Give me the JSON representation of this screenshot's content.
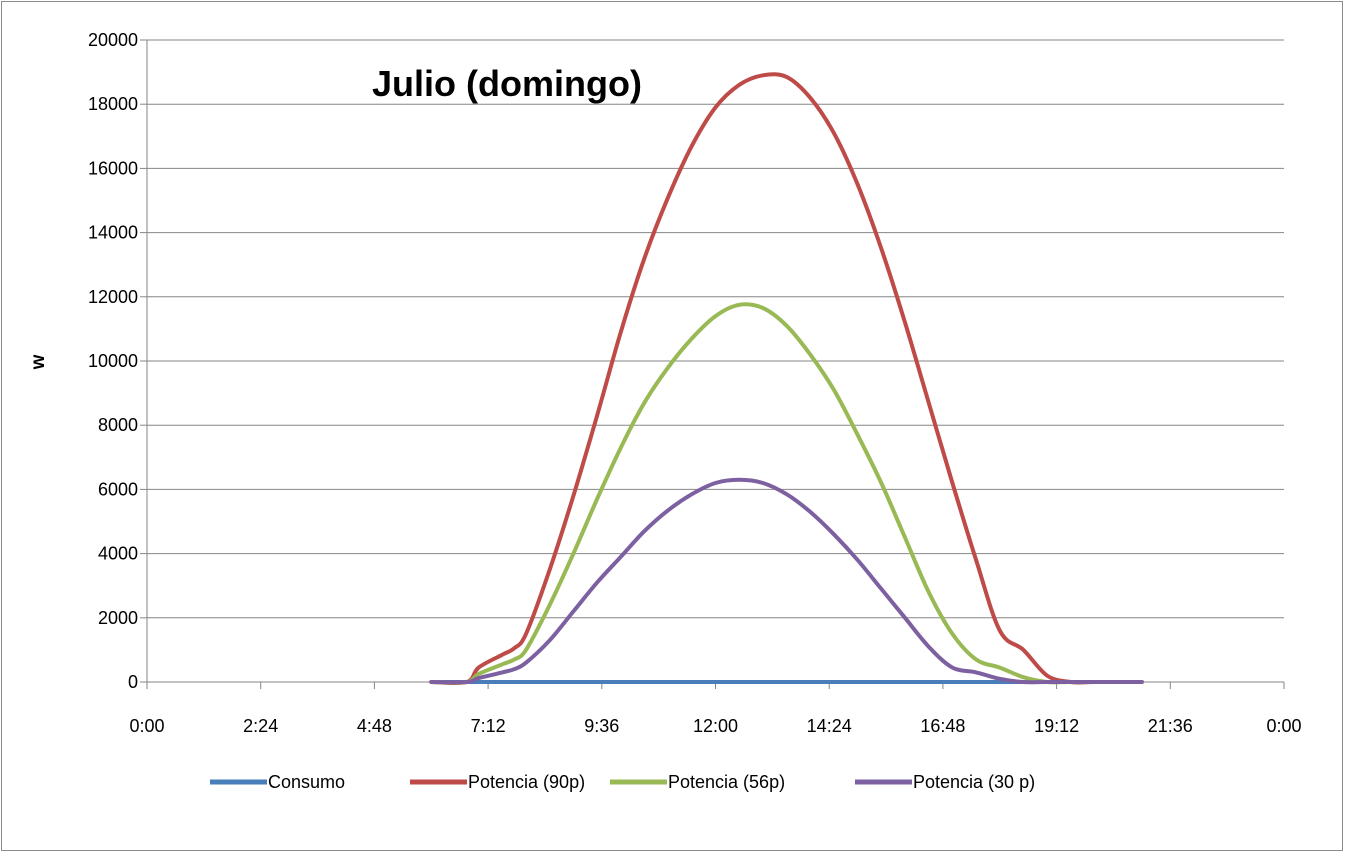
{
  "chart_data": {
    "type": "line",
    "title": "Julio (domingo)",
    "xlabel": "",
    "ylabel": "w",
    "xlim": [
      "0:00",
      "0:00"
    ],
    "ylim": [
      0,
      20000
    ],
    "x_ticks": [
      "0:00",
      "2:24",
      "4:48",
      "7:12",
      "9:36",
      "12:00",
      "14:24",
      "16:48",
      "19:12",
      "21:36",
      "0:00"
    ],
    "y_ticks": [
      0,
      2000,
      4000,
      6000,
      8000,
      10000,
      12000,
      14000,
      16000,
      18000,
      20000
    ],
    "grid": true,
    "legend_position": "bottom",
    "series": [
      {
        "name": "Consumo",
        "color": "#4a7ebb",
        "x": [
          "6:00",
          "19:30"
        ],
        "y": [
          0,
          0
        ]
      },
      {
        "name": "Potencia (90p)",
        "color": "#be4b48",
        "x": [
          "6:00",
          "6:45",
          "7:00",
          "7:30",
          "7:45",
          "8:00",
          "8:30",
          "9:00",
          "9:30",
          "10:00",
          "10:30",
          "11:00",
          "11:30",
          "12:00",
          "12:30",
          "13:00",
          "13:30",
          "14:00",
          "14:30",
          "15:00",
          "15:30",
          "16:00",
          "16:30",
          "17:00",
          "17:30",
          "18:00",
          "18:30",
          "19:00",
          "19:30",
          "20:00",
          "20:30",
          "21:00"
        ],
        "y": [
          0,
          0,
          450,
          850,
          1050,
          1500,
          3500,
          5800,
          8300,
          10900,
          13200,
          15100,
          16700,
          17900,
          18600,
          18900,
          18850,
          18200,
          17100,
          15500,
          13500,
          11200,
          8700,
          6200,
          3800,
          1600,
          1000,
          200,
          0,
          0,
          0,
          0
        ]
      },
      {
        "name": "Potencia (56p)",
        "color": "#98b954",
        "x": [
          "6:00",
          "6:45",
          "7:00",
          "7:30",
          "7:45",
          "8:00",
          "8:30",
          "9:00",
          "9:30",
          "10:00",
          "10:30",
          "11:00",
          "11:30",
          "12:00",
          "12:30",
          "13:00",
          "13:30",
          "14:00",
          "14:30",
          "15:00",
          "15:30",
          "16:00",
          "16:30",
          "17:00",
          "17:30",
          "18:00",
          "18:30",
          "19:00",
          "19:30",
          "20:00",
          "20:30",
          "21:00"
        ],
        "y": [
          0,
          0,
          250,
          550,
          700,
          1000,
          2400,
          4000,
          5700,
          7300,
          8700,
          9800,
          10700,
          11400,
          11750,
          11650,
          11100,
          10200,
          9100,
          7700,
          6200,
          4500,
          2800,
          1500,
          700,
          450,
          150,
          0,
          0,
          0,
          0,
          0
        ]
      },
      {
        "name": "Potencia (30 p)",
        "color": "#7d60a0",
        "x": [
          "6:00",
          "6:45",
          "7:00",
          "7:30",
          "7:45",
          "8:00",
          "8:30",
          "9:00",
          "9:30",
          "10:00",
          "10:30",
          "11:00",
          "11:30",
          "12:00",
          "12:30",
          "13:00",
          "13:30",
          "14:00",
          "14:30",
          "15:00",
          "15:30",
          "16:00",
          "16:30",
          "17:00",
          "17:30",
          "18:00",
          "18:30",
          "19:00",
          "19:30",
          "20:00",
          "20:30",
          "21:00"
        ],
        "y": [
          0,
          0,
          120,
          300,
          400,
          600,
          1300,
          2200,
          3100,
          3900,
          4700,
          5350,
          5850,
          6200,
          6300,
          6200,
          5850,
          5300,
          4600,
          3800,
          2900,
          2000,
          1100,
          450,
          300,
          100,
          0,
          0,
          0,
          0,
          0,
          0
        ]
      }
    ]
  }
}
